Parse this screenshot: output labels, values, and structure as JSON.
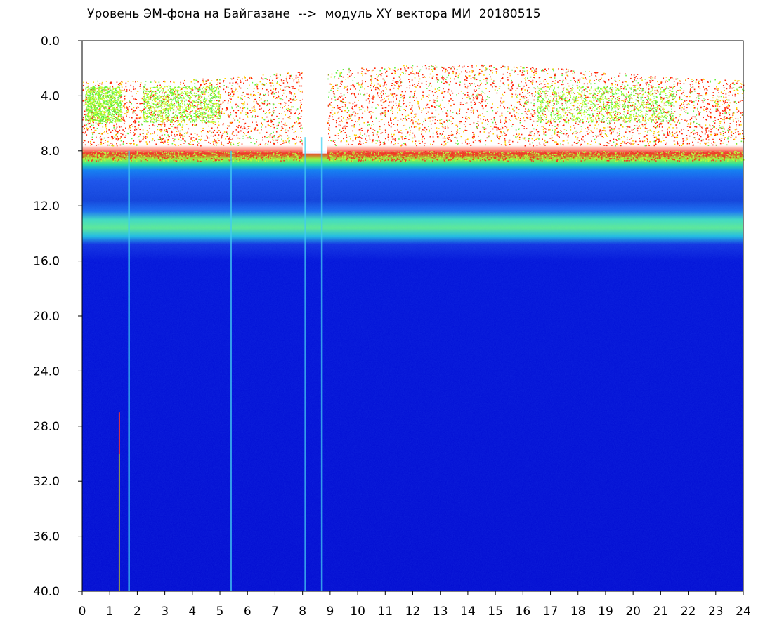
{
  "chart_data": {
    "type": "heatmap",
    "title": "Уровень ЭМ-фона на Байгазане  -->  модуль XY вектора МИ  20180515",
    "xlabel": "",
    "ylabel": "",
    "xlim": [
      0,
      24
    ],
    "ylim": [
      0.0,
      40.0
    ],
    "y_inverted": true,
    "grid": false,
    "legend": "none",
    "x_ticks": [
      "0",
      "1",
      "2",
      "3",
      "4",
      "5",
      "6",
      "7",
      "8",
      "9",
      "10",
      "11",
      "12",
      "13",
      "14",
      "15",
      "16",
      "17",
      "18",
      "19",
      "20",
      "21",
      "22",
      "23",
      "24"
    ],
    "y_ticks": [
      "0.0",
      "4.0",
      "8.0",
      "12.0",
      "16.0",
      "20.0",
      "24.0",
      "28.0",
      "32.0",
      "36.0",
      "40.0"
    ],
    "colormap": {
      "low": "#0000e0",
      "mid_low": "#1a6cf0",
      "mid": "#20e0c0",
      "mid_high": "#c0ff30",
      "high": "#ff2000",
      "none": "#ffffff"
    },
    "bands": [
      {
        "name_ref": "sparse-high-band",
        "y_range": [
          2.0,
          7.0
        ],
        "level": "high"
      },
      {
        "name_ref": "strong-band",
        "y_range": [
          8.0,
          9.2
        ],
        "level": "mid_high"
      },
      {
        "name_ref": "band-10-12",
        "y_range": [
          9.2,
          12.5
        ],
        "level": "mid_low"
      },
      {
        "name_ref": "band-13-14",
        "y_range": [
          12.8,
          14.5
        ],
        "level": "mid"
      },
      {
        "name_ref": "background",
        "y_range": [
          15.0,
          40.0
        ],
        "level": "low"
      }
    ],
    "features": [
      {
        "x": 1.35,
        "y_range": [
          27.0,
          40.0
        ],
        "level": "high"
      },
      {
        "x": 1.7,
        "y_range": [
          8.0,
          40.0
        ],
        "level": "mid"
      },
      {
        "x": 5.4,
        "y_range": [
          8.0,
          40.0
        ],
        "level": "mid"
      },
      {
        "x": 8.1,
        "y_range": [
          7.0,
          40.0
        ],
        "level": "mid"
      },
      {
        "x": 8.7,
        "y_range": [
          7.0,
          40.0
        ],
        "level": "mid"
      }
    ],
    "gap_x_range": [
      8.0,
      8.9
    ]
  }
}
